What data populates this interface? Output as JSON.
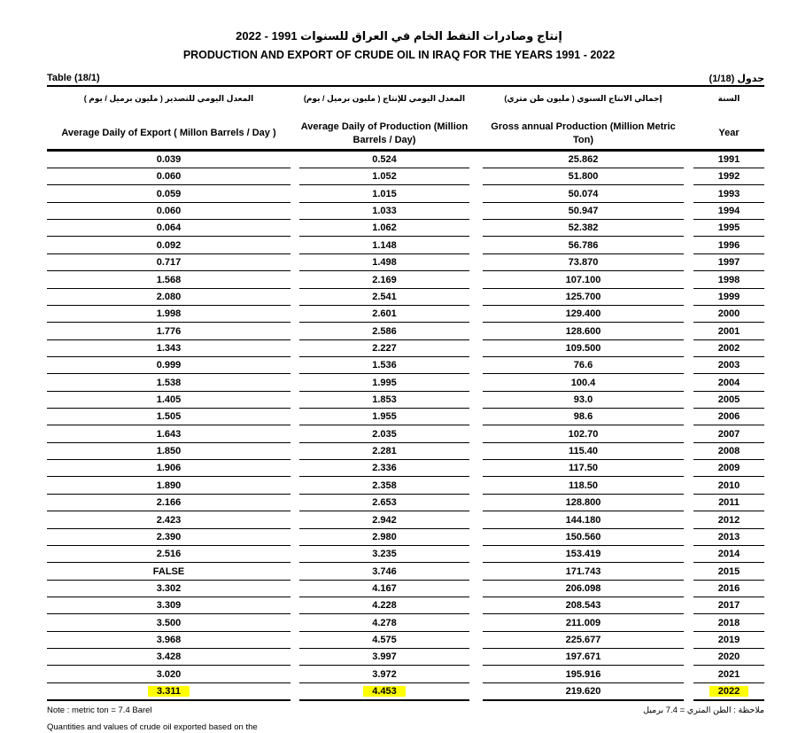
{
  "header": {
    "title_ar": "إنتاج وصادرات النفط الخام في العراق للسنوات 1991 - 2022",
    "title_en": "PRODUCTION AND EXPORT OF CRUDE OIL IN IRAQ FOR THE YEARS 1991 - 2022",
    "table_label": "Table (18/1)",
    "table_label_ar": "جدول (1/18)"
  },
  "table": {
    "columns": [
      {
        "ar": "المعدل اليومي للتصدير ( مليون برميل / يوم )",
        "en": "Average Daily of Export ( Millon Barrels / Day )"
      },
      {
        "ar": "المعدل اليومي للإنتاج ( مليون برميل / يوم)",
        "en": "Average Daily of Production (Million Barrels / Day)"
      },
      {
        "ar": "إجمالي الانتاج السنوي ( مليون طن متري)",
        "en": "Gross annual Production (Million Metric Ton)"
      },
      {
        "ar": "السنة",
        "en": "Year"
      }
    ],
    "rows": [
      [
        "0.039",
        "0.524",
        "25.862",
        "1991"
      ],
      [
        "0.060",
        "1.052",
        "51.800",
        "1992"
      ],
      [
        "0.059",
        "1.015",
        "50.074",
        "1993"
      ],
      [
        "0.060",
        "1.033",
        "50.947",
        "1994"
      ],
      [
        "0.064",
        "1.062",
        "52.382",
        "1995"
      ],
      [
        "0.092",
        "1.148",
        "56.786",
        "1996"
      ],
      [
        "0.717",
        "1.498",
        "73.870",
        "1997"
      ],
      [
        "1.568",
        "2.169",
        "107.100",
        "1998"
      ],
      [
        "2.080",
        "2.541",
        "125.700",
        "1999"
      ],
      [
        "1.998",
        "2.601",
        "129.400",
        "2000"
      ],
      [
        "1.776",
        "2.586",
        "128.600",
        "2001"
      ],
      [
        "1.343",
        "2.227",
        "109.500",
        "2002"
      ],
      [
        "0.999",
        "1.536",
        "76.6",
        "2003"
      ],
      [
        "1.538",
        "1.995",
        "100.4",
        "2004"
      ],
      [
        "1.405",
        "1.853",
        "93.0",
        "2005"
      ],
      [
        "1.505",
        "1.955",
        "98.6",
        "2006"
      ],
      [
        "1.643",
        "2.035",
        "102.70",
        "2007"
      ],
      [
        "1.850",
        "2.281",
        "115.40",
        "2008"
      ],
      [
        "1.906",
        "2.336",
        "117.50",
        "2009"
      ],
      [
        "1.890",
        "2.358",
        "118.50",
        "2010"
      ],
      [
        "2.166",
        "2.653",
        "128.800",
        "2011"
      ],
      [
        "2.423",
        "2.942",
        "144.180",
        "2012"
      ],
      [
        "2.390",
        "2.980",
        "150.560",
        "2013"
      ],
      [
        "2.516",
        "3.235",
        "153.419",
        "2014"
      ],
      [
        "FALSE",
        "3.746",
        "171.743",
        "2015"
      ],
      [
        "3.302",
        "4.167",
        "206.098",
        "2016"
      ],
      [
        "3.309",
        "4.228",
        "208.543",
        "2017"
      ],
      [
        "3.500",
        "4.278",
        "211.009",
        "2018"
      ],
      [
        "3.968",
        "4.575",
        "225.677",
        "2019"
      ],
      [
        "3.428",
        "3.997",
        "197.671",
        "2020"
      ],
      [
        "3.020",
        "3.972",
        "195.916",
        "2021"
      ],
      [
        "3.311",
        "4.453",
        "219.620",
        "2022"
      ]
    ]
  },
  "footer": {
    "note": "Note : metric ton = 7.4 Barel",
    "note_ar": "ملاحظة : الطن المتري = 7.4 برميل",
    "footnote": "Quantities and values of crude oil exported based on the"
  }
}
